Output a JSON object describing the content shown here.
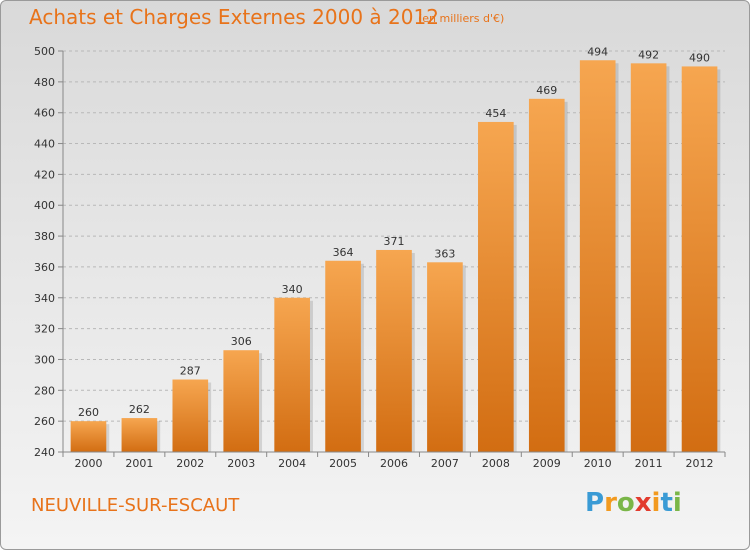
{
  "title": "Achats et Charges Externes 2000 à 2012",
  "subtitle": "(en milliers d'€)",
  "location": "NEUVILLE-SUR-ESCAUT",
  "logo": {
    "letters": [
      "P",
      "r",
      "o",
      "x",
      "i",
      "t",
      "i"
    ],
    "colors": [
      "#3a9bd5",
      "#f29a1f",
      "#7ab648",
      "#e23b2e",
      "#f29a1f",
      "#3a9bd5",
      "#7ab648"
    ]
  },
  "colors": {
    "bar_top": "#f6a650",
    "bar_bottom": "#d26d12",
    "text_accent": "#e8731a",
    "grid": "#b8b8b8"
  },
  "chart_data": {
    "type": "bar",
    "categories": [
      "2000",
      "2001",
      "2002",
      "2003",
      "2004",
      "2005",
      "2006",
      "2007",
      "2008",
      "2009",
      "2010",
      "2011",
      "2012"
    ],
    "values": [
      260,
      262,
      287,
      306,
      340,
      364,
      371,
      363,
      454,
      469,
      494,
      492,
      490
    ],
    "data_labels": [
      "260",
      "262",
      "287",
      "306",
      "340",
      "364",
      "371",
      "363",
      "454",
      "469",
      "494",
      "492",
      "490"
    ],
    "ylim": [
      240,
      500
    ],
    "yticks": [
      240,
      260,
      280,
      300,
      320,
      340,
      360,
      380,
      400,
      420,
      440,
      460,
      480,
      500
    ],
    "grid": true,
    "xlabel": "",
    "ylabel": ""
  }
}
